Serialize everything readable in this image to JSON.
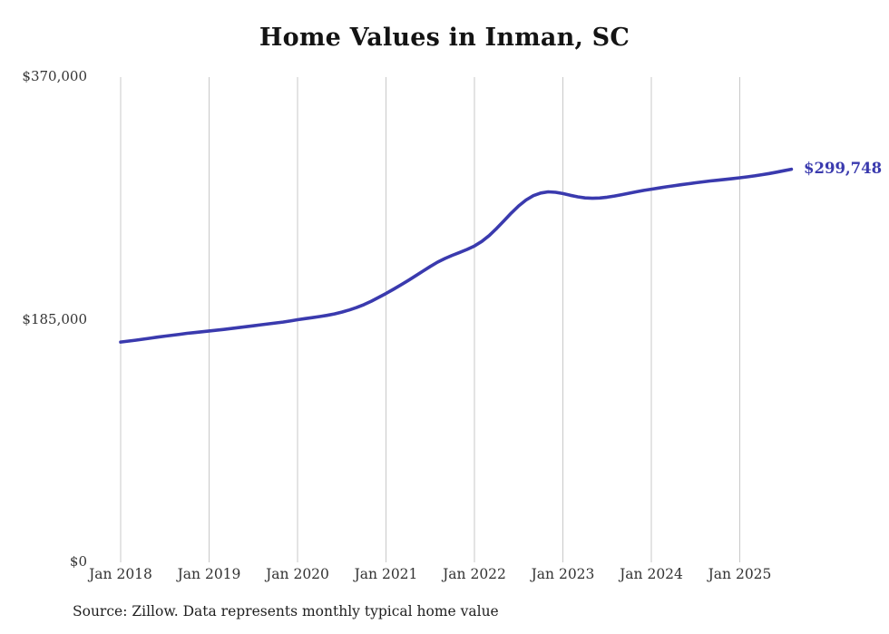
{
  "chart": {
    "title": "Home Values in Inman, SC",
    "end_label": "$299,748",
    "source_note": "Source: Zillow. Data represents monthly typical home value",
    "line_color": "#3a3aae",
    "grid_color": "#c9c9c9"
  },
  "chart_data": {
    "type": "line",
    "title": "Home Values in Inman, SC",
    "xlabel": "",
    "ylabel": "",
    "ylim": [
      0,
      370000
    ],
    "grid": "vertical-only",
    "legend": false,
    "x_start": "Jan 2018",
    "x_end": "Aug 2025",
    "x_interval": "monthly",
    "y_ticks": [
      {
        "label": "$0",
        "value": 0
      },
      {
        "label": "$185,000",
        "value": 185000
      },
      {
        "label": "$370,000",
        "value": 370000
      }
    ],
    "x_ticks": [
      {
        "label": "Jan 2018",
        "month_index": 0
      },
      {
        "label": "Jan 2019",
        "month_index": 12
      },
      {
        "label": "Jan 2020",
        "month_index": 24
      },
      {
        "label": "Jan 2021",
        "month_index": 36
      },
      {
        "label": "Jan 2022",
        "month_index": 48
      },
      {
        "label": "Jan 2023",
        "month_index": 60
      },
      {
        "label": "Jan 2024",
        "month_index": 72
      },
      {
        "label": "Jan 2025",
        "month_index": 84
      }
    ],
    "end_value": 299748,
    "series": [
      {
        "name": "Monthly typical home value",
        "values": [
          168000,
          168700,
          169400,
          170100,
          170900,
          171700,
          172500,
          173200,
          173900,
          174600,
          175200,
          175800,
          176400,
          177000,
          177600,
          178300,
          179000,
          179700,
          180400,
          181100,
          181800,
          182500,
          183200,
          184000,
          185000,
          185800,
          186600,
          187400,
          188300,
          189400,
          190800,
          192400,
          194300,
          196500,
          199100,
          202000,
          205000,
          208200,
          211500,
          214900,
          218400,
          222000,
          225600,
          228900,
          231700,
          234100,
          236300,
          238600,
          241200,
          244700,
          249200,
          254600,
          260400,
          266300,
          271800,
          276300,
          279600,
          281600,
          282500,
          282200,
          281200,
          279900,
          278700,
          277900,
          277600,
          277800,
          278400,
          279300,
          280400,
          281500,
          282600,
          283600,
          284500,
          285400,
          286300,
          287100,
          287900,
          288700,
          289400,
          290100,
          290800,
          291400,
          292000,
          292600,
          293200,
          293900,
          294700,
          295600,
          296500,
          297500,
          298600,
          299748
        ]
      }
    ]
  }
}
